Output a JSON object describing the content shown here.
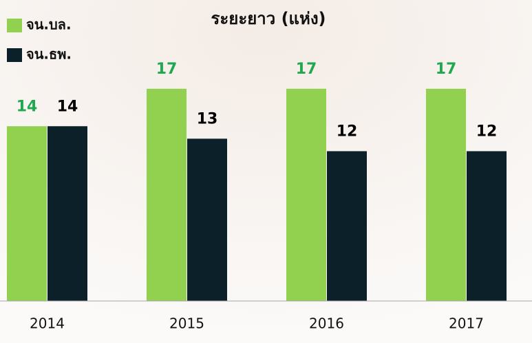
{
  "chart_data": {
    "type": "bar",
    "title": "ระยะยาว (แห่ง)",
    "categories": [
      "2014",
      "2015",
      "2016",
      "2017"
    ],
    "series": [
      {
        "name": "จน.บล.",
        "color": "#92d050",
        "label_color": "#1fa84f",
        "values": [
          14,
          17,
          17,
          17
        ]
      },
      {
        "name": "จน.ธพ.",
        "color": "#0b2028",
        "label_color": "#000000",
        "values": [
          14,
          13,
          12,
          12
        ]
      }
    ],
    "ylim": [
      0,
      24
    ],
    "grid": false
  }
}
